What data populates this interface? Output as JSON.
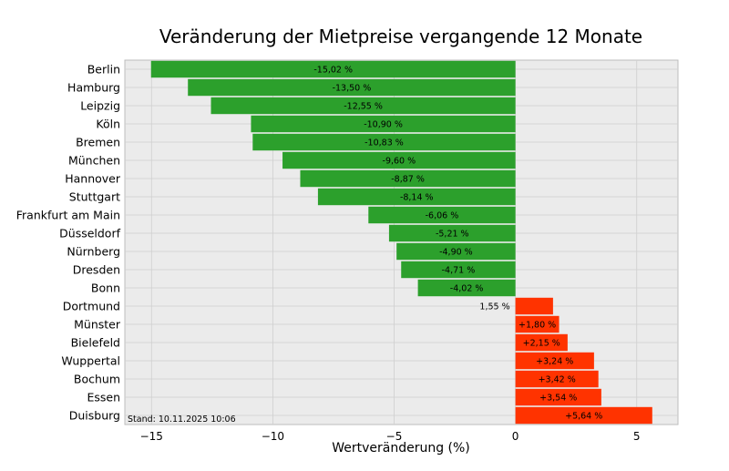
{
  "chart_data": {
    "type": "bar",
    "orientation": "horizontal",
    "title": "Veränderung der Mietpreise vergangende 12 Monate",
    "xlabel": "Wertveränderung (%)",
    "ylabel": "",
    "xlim": [
      -16.1,
      6.7
    ],
    "xticks": [
      -15,
      -10,
      -5,
      0,
      5
    ],
    "xtick_labels": [
      "−15",
      "−10",
      "−5",
      "0",
      "5"
    ],
    "grid": true,
    "categories": [
      "Berlin",
      "Hamburg",
      "Leipzig",
      "Köln",
      "Bremen",
      "München",
      "Hannover",
      "Stuttgart",
      "Frankfurt am Main",
      "Düsseldorf",
      "Nürnberg",
      "Dresden",
      "Bonn",
      "Dortmund",
      "Münster",
      "Bielefeld",
      "Wuppertal",
      "Bochum",
      "Essen",
      "Duisburg"
    ],
    "values": [
      -15.02,
      -13.5,
      -12.55,
      -10.9,
      -10.83,
      -9.6,
      -8.87,
      -8.14,
      -6.06,
      -5.21,
      -4.9,
      -4.71,
      -4.02,
      1.55,
      1.8,
      2.15,
      3.24,
      3.42,
      3.54,
      5.64
    ],
    "data_labels": [
      "-15,02 %",
      "-13,50 %",
      "-12,55 %",
      "-10,90 %",
      "-10,83 %",
      "-9,60 %",
      "-8,87 %",
      "-8,14 %",
      "-6,06 %",
      "-5,21 %",
      "-4,90 %",
      "-4,71 %",
      "-4,02 %",
      "1,55 %",
      "+1,80 %",
      "+2,15 %",
      "+3,24 %",
      "+3,42 %",
      "+3,54 %",
      "+5,64 %"
    ],
    "annotation": "Stand: 10.11.2025 10:06",
    "colors": {
      "negative": "#2ca02c",
      "positive": "#ff3300",
      "axes_bg": "#ebebeb",
      "grid": "#cfcfcf"
    }
  }
}
